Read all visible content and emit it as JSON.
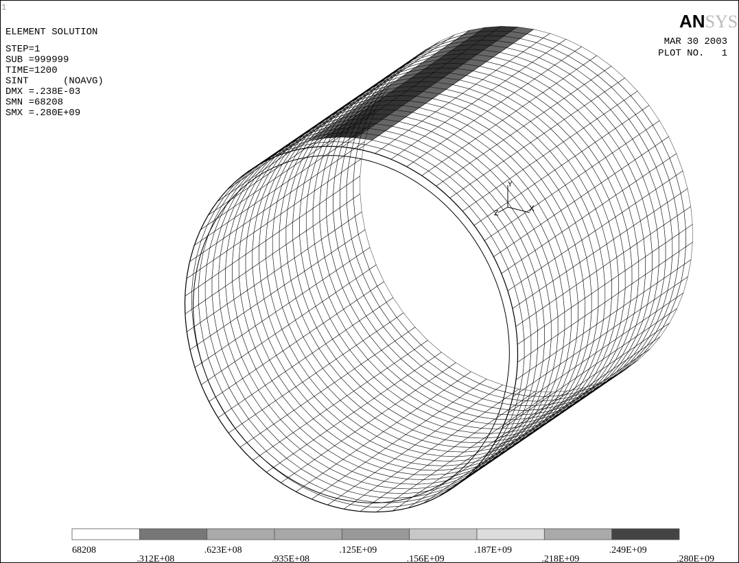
{
  "window_number": "1",
  "info": {
    "title": "ELEMENT SOLUTION",
    "lines": [
      "STEP=1",
      "SUB =999999",
      "TIME=1200",
      "SINT      (NOAVG)",
      "DMX =.238E-03",
      "SMN =68208",
      "SMX =.280E+09"
    ]
  },
  "logo": {
    "bold": "AN",
    "light": "SYS"
  },
  "date": "MAR 30 2003",
  "plot_no": "PLOT NO.   1",
  "triad": {
    "y": "Y",
    "z": "Z",
    "x": "X"
  },
  "legend": {
    "labels": [
      "68208",
      ".312E+08",
      ".623E+08",
      ".935E+08",
      ".125E+09",
      ".156E+09",
      ".187E+09",
      ".218E+09",
      ".249E+09",
      ".280E+09"
    ]
  }
}
